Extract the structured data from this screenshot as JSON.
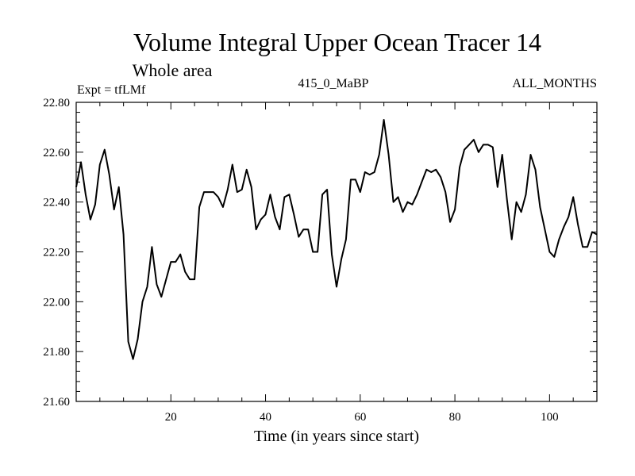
{
  "chart_data": {
    "type": "line",
    "title": "Volume Integral Upper Ocean Tracer 14",
    "subtitle": "Whole area",
    "experiment_label": "Expt = tfLMf",
    "center_label": "415_0_MaBP",
    "right_label": "ALL_MONTHS",
    "xlabel": "Time (in years since start)",
    "ylabel": "",
    "xlim": [
      0,
      110
    ],
    "ylim": [
      21.6,
      22.8
    ],
    "x_ticks": [
      20,
      40,
      60,
      80,
      100
    ],
    "y_ticks": [
      21.6,
      21.8,
      22.0,
      22.2,
      22.4,
      22.6,
      22.8
    ],
    "y_tick_labels": [
      "21.60",
      "21.80",
      "22.00",
      "22.20",
      "22.40",
      "22.60",
      "22.80"
    ],
    "grid": false,
    "series": [
      {
        "name": "tracer14",
        "color": "#000000",
        "x": [
          0,
          1,
          2,
          3,
          4,
          5,
          6,
          7,
          8,
          9,
          10,
          11,
          12,
          13,
          14,
          15,
          16,
          17,
          18,
          19,
          20,
          21,
          22,
          23,
          24,
          25,
          26,
          27,
          28,
          29,
          30,
          31,
          32,
          33,
          34,
          35,
          36,
          37,
          38,
          39,
          40,
          41,
          42,
          43,
          44,
          45,
          46,
          47,
          48,
          49,
          50,
          51,
          52,
          53,
          54,
          55,
          56,
          57,
          58,
          59,
          60,
          61,
          62,
          63,
          64,
          65,
          66,
          67,
          68,
          69,
          70,
          71,
          72,
          73,
          74,
          75,
          76,
          77,
          78,
          79,
          80,
          81,
          82,
          83,
          84,
          85,
          86,
          87,
          88,
          89,
          90,
          91,
          92,
          93,
          94,
          95,
          96,
          97,
          98,
          99,
          100,
          101,
          102,
          103,
          104,
          105,
          106,
          107,
          108,
          109,
          110
        ],
        "values": [
          22.46,
          22.56,
          22.43,
          22.33,
          22.39,
          22.55,
          22.61,
          22.51,
          22.37,
          22.46,
          22.27,
          21.84,
          21.77,
          21.85,
          22.0,
          22.06,
          22.22,
          22.07,
          22.02,
          22.09,
          22.16,
          22.16,
          22.19,
          22.12,
          22.09,
          22.09,
          22.38,
          22.44,
          22.44,
          22.44,
          22.42,
          22.38,
          22.45,
          22.55,
          22.44,
          22.45,
          22.53,
          22.46,
          22.29,
          22.33,
          22.35,
          22.43,
          22.34,
          22.29,
          22.42,
          22.43,
          22.35,
          22.26,
          22.29,
          22.29,
          22.2,
          22.2,
          22.43,
          22.45,
          22.19,
          22.06,
          22.17,
          22.25,
          22.49,
          22.49,
          22.44,
          22.52,
          22.51,
          22.52,
          22.59,
          22.73,
          22.59,
          22.4,
          22.42,
          22.36,
          22.4,
          22.39,
          22.43,
          22.48,
          22.53,
          22.52,
          22.53,
          22.5,
          22.44,
          22.32,
          22.37,
          22.54,
          22.61,
          22.63,
          22.65,
          22.6,
          22.63,
          22.63,
          22.62,
          22.46,
          22.59,
          22.41,
          22.25,
          22.4,
          22.36,
          22.43,
          22.59,
          22.53,
          22.38,
          22.29,
          22.2,
          22.18,
          22.25,
          22.3,
          22.34,
          22.42,
          22.31,
          22.22,
          22.22,
          22.28,
          22.27
        ]
      }
    ]
  }
}
